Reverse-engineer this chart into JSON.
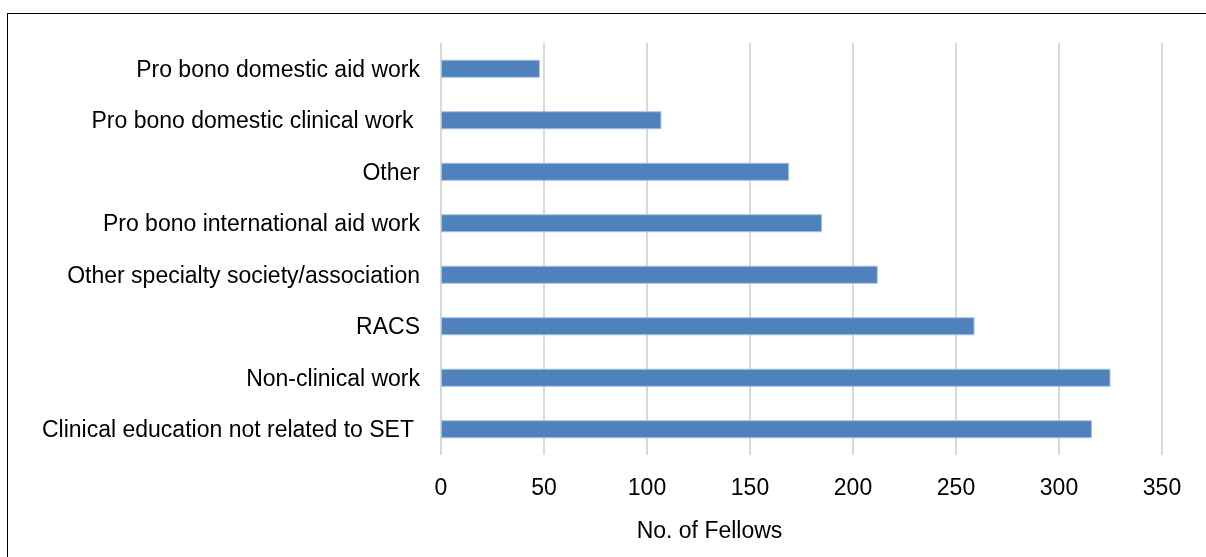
{
  "chart_data": {
    "type": "bar",
    "orientation": "horizontal",
    "xlabel": "No. of Fellows",
    "categories": [
      "Pro bono domestic aid work",
      "Pro bono domestic clinical work ",
      "Other",
      "Pro bono international aid work",
      "Other specialty society/association",
      "RACS",
      "Non-clinical work",
      "Clinical education not related to SET "
    ],
    "values": [
      48,
      107,
      169,
      185,
      212,
      259,
      325,
      316
    ],
    "color": "#4f81bd",
    "xlim": [
      0,
      350
    ],
    "xticks": [
      0,
      50,
      100,
      150,
      200,
      250,
      300,
      350
    ],
    "grid": "x"
  }
}
